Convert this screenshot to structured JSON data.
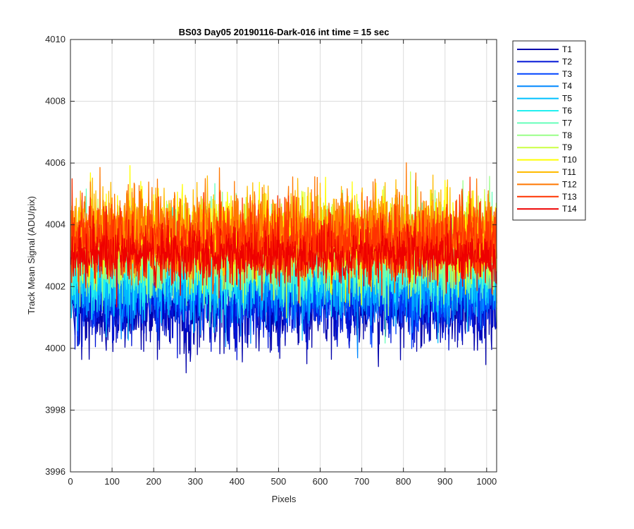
{
  "chart_data": {
    "type": "line",
    "title": "BS03 Day05 20190116-Dark-016 int time = 15 sec",
    "xlabel": "Pixels",
    "ylabel": "Track Mean Signal (ADU/pix)",
    "xlim": [
      0,
      1024
    ],
    "ylim": [
      3996,
      4010
    ],
    "xticks": [
      0,
      100,
      200,
      300,
      400,
      500,
      600,
      700,
      800,
      900,
      1000
    ],
    "yticks": [
      3996,
      3998,
      4000,
      4002,
      4004,
      4006,
      4008,
      4010
    ],
    "grid": true,
    "legend_position": "outside-top-right",
    "x": {
      "start": 1,
      "end": 1024,
      "step": 1
    },
    "series": [
      {
        "name": "T1",
        "color": "#0000aa",
        "mean": 4001.3,
        "spread": 0.9
      },
      {
        "name": "T2",
        "color": "#0014d6",
        "mean": 4001.6,
        "spread": 0.9
      },
      {
        "name": "T3",
        "color": "#0044ff",
        "mean": 4001.9,
        "spread": 0.9
      },
      {
        "name": "T4",
        "color": "#0088ff",
        "mean": 4002.1,
        "spread": 0.9
      },
      {
        "name": "T5",
        "color": "#00c0ff",
        "mean": 4002.4,
        "spread": 0.9
      },
      {
        "name": "T6",
        "color": "#22f0f0",
        "mean": 4002.7,
        "spread": 0.9
      },
      {
        "name": "T7",
        "color": "#66ffbb",
        "mean": 4003.0,
        "spread": 0.9
      },
      {
        "name": "T8",
        "color": "#99ff88",
        "mean": 4003.2,
        "spread": 0.9
      },
      {
        "name": "T9",
        "color": "#ccff44",
        "mean": 4003.4,
        "spread": 0.9
      },
      {
        "name": "T10",
        "color": "#ffff00",
        "mean": 4003.6,
        "spread": 0.9
      },
      {
        "name": "T11",
        "color": "#ffbb00",
        "mean": 4003.7,
        "spread": 0.9
      },
      {
        "name": "T12",
        "color": "#ff7700",
        "mean": 4003.8,
        "spread": 0.9
      },
      {
        "name": "T13",
        "color": "#ff3300",
        "mean": 4003.4,
        "spread": 0.9
      },
      {
        "name": "T14",
        "color": "#ee0000",
        "mean": 4003.0,
        "spread": 0.6
      }
    ]
  }
}
